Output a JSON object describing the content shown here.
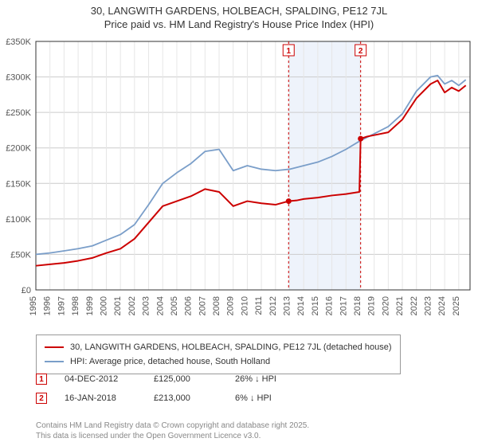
{
  "title_line1": "30, LANGWITH GARDENS, HOLBEACH, SPALDING, PE12 7JL",
  "title_line2": "Price paid vs. HM Land Registry's House Price Index (HPI)",
  "chart": {
    "type": "line",
    "background_color": "#ffffff",
    "plot_border_color": "#333333",
    "grid_color_major": "#cccccc",
    "grid_color_minor": "#e6e6e6",
    "axis_label_color": "#555555",
    "axis_font_size": 11,
    "x_min_year": 1995,
    "x_max_year": 2025.8,
    "x_ticks": [
      1995,
      1996,
      1997,
      1998,
      1999,
      2000,
      2001,
      2002,
      2003,
      2004,
      2005,
      2006,
      2007,
      2008,
      2009,
      2010,
      2011,
      2012,
      2013,
      2014,
      2015,
      2016,
      2017,
      2018,
      2019,
      2020,
      2021,
      2022,
      2023,
      2024,
      2025
    ],
    "y_min": 0,
    "y_max": 350000,
    "y_tick_step": 50000,
    "y_tick_labels": [
      "£0",
      "£50K",
      "£100K",
      "£150K",
      "£200K",
      "£250K",
      "£300K",
      "£350K"
    ],
    "shaded_band": {
      "start_year": 2012.9,
      "end_year": 2018.05,
      "fill": "#eef3fb"
    },
    "events": [
      {
        "id": "1",
        "year": 2012.93,
        "marker_color": "#cc0000"
      },
      {
        "id": "2",
        "year": 2018.04,
        "marker_color": "#cc0000"
      }
    ],
    "series_red": {
      "name": "30, LANGWITH GARDENS, HOLBEACH, SPALDING, PE12 7JL (detached house)",
      "color": "#cc0000",
      "width": 2,
      "points": [
        [
          1995,
          34000
        ],
        [
          1996,
          36000
        ],
        [
          1997,
          38000
        ],
        [
          1998,
          41000
        ],
        [
          1999,
          45000
        ],
        [
          2000,
          52000
        ],
        [
          2001,
          58000
        ],
        [
          2002,
          72000
        ],
        [
          2003,
          95000
        ],
        [
          2004,
          118000
        ],
        [
          2005,
          125000
        ],
        [
          2006,
          132000
        ],
        [
          2007,
          142000
        ],
        [
          2008,
          138000
        ],
        [
          2009,
          118000
        ],
        [
          2010,
          125000
        ],
        [
          2011,
          122000
        ],
        [
          2012,
          120000
        ],
        [
          2012.93,
          125000
        ],
        [
          2013.5,
          126000
        ],
        [
          2014,
          128000
        ],
        [
          2015,
          130000
        ],
        [
          2016,
          133000
        ],
        [
          2017,
          135000
        ],
        [
          2017.95,
          138000
        ],
        [
          2018.04,
          213000
        ],
        [
          2018.5,
          216000
        ],
        [
          2019,
          218000
        ],
        [
          2020,
          222000
        ],
        [
          2021,
          240000
        ],
        [
          2022,
          270000
        ],
        [
          2023,
          290000
        ],
        [
          2023.5,
          295000
        ],
        [
          2024,
          278000
        ],
        [
          2024.5,
          285000
        ],
        [
          2025,
          280000
        ],
        [
          2025.5,
          288000
        ]
      ],
      "sale_markers": [
        {
          "year": 2012.93,
          "value": 125000
        },
        {
          "year": 2018.04,
          "value": 213000
        }
      ]
    },
    "series_blue": {
      "name": "HPI: Average price, detached house, South Holland",
      "color": "#7a9ec9",
      "width": 1.8,
      "points": [
        [
          1995,
          50000
        ],
        [
          1996,
          52000
        ],
        [
          1997,
          55000
        ],
        [
          1998,
          58000
        ],
        [
          1999,
          62000
        ],
        [
          2000,
          70000
        ],
        [
          2001,
          78000
        ],
        [
          2002,
          92000
        ],
        [
          2003,
          120000
        ],
        [
          2004,
          150000
        ],
        [
          2005,
          165000
        ],
        [
          2006,
          178000
        ],
        [
          2007,
          195000
        ],
        [
          2008,
          198000
        ],
        [
          2009,
          168000
        ],
        [
          2010,
          175000
        ],
        [
          2011,
          170000
        ],
        [
          2012,
          168000
        ],
        [
          2013,
          170000
        ],
        [
          2014,
          175000
        ],
        [
          2015,
          180000
        ],
        [
          2016,
          188000
        ],
        [
          2017,
          198000
        ],
        [
          2018,
          210000
        ],
        [
          2019,
          220000
        ],
        [
          2020,
          230000
        ],
        [
          2021,
          248000
        ],
        [
          2022,
          280000
        ],
        [
          2023,
          300000
        ],
        [
          2023.5,
          302000
        ],
        [
          2024,
          290000
        ],
        [
          2024.5,
          295000
        ],
        [
          2025,
          288000
        ],
        [
          2025.5,
          296000
        ]
      ]
    }
  },
  "legend": {
    "row1_label": "30, LANGWITH GARDENS, HOLBEACH, SPALDING, PE12 7JL (detached house)",
    "row1_color": "#cc0000",
    "row2_label": "HPI: Average price, detached house, South Holland",
    "row2_color": "#7a9ec9"
  },
  "event_rows": [
    {
      "id": "1",
      "date": "04-DEC-2012",
      "price": "£125,000",
      "delta": "26% ↓ HPI",
      "marker_color": "#cc0000"
    },
    {
      "id": "2",
      "date": "16-JAN-2018",
      "price": "£213,000",
      "delta": "6% ↓ HPI",
      "marker_color": "#cc0000"
    }
  ],
  "footer_line1": "Contains HM Land Registry data © Crown copyright and database right 2025.",
  "footer_line2": "This data is licensed under the Open Government Licence v3.0."
}
